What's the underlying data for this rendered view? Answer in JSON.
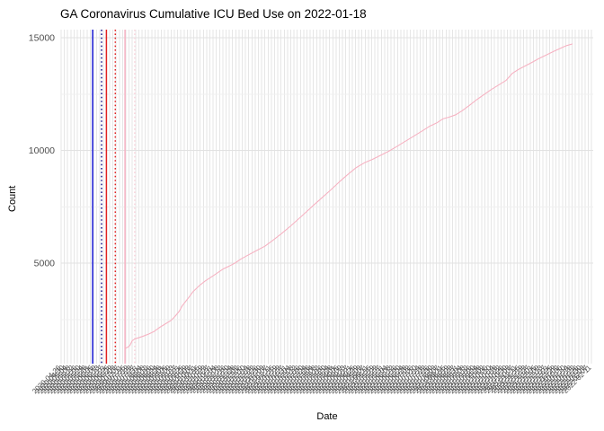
{
  "chart_data": {
    "type": "line",
    "title": "GA Coronavirus Cumulative ICU Bed Use on 2022-01-18",
    "xlabel": "Date",
    "ylabel": "Count",
    "legend": "none",
    "grid": true,
    "y_axis": {
      "ticks": [
        5000,
        10000,
        15000
      ],
      "tick_labels": [
        "5000",
        "10000",
        "15000"
      ],
      "minor_ticks": [
        2500,
        7500,
        12500
      ],
      "range": [
        538,
        15358
      ]
    },
    "x_axis": {
      "unit": "date",
      "tick_start": "2020-04-26",
      "tick_step_days": 4,
      "tick_count": 165,
      "range_days": [
        0,
        658
      ],
      "label_rotation_deg": 45,
      "last_data_date": "2022-01-18"
    },
    "series": [
      {
        "name": "cumulative-icu-bed-use",
        "color": "#f6b2c2",
        "x_unit": "days-since-axis-start",
        "points": [
          [
            79,
            1210
          ],
          [
            82,
            1260
          ],
          [
            85,
            1345
          ],
          [
            88,
            1560
          ],
          [
            92,
            1645
          ],
          [
            97,
            1700
          ],
          [
            102,
            1765
          ],
          [
            108,
            1850
          ],
          [
            115,
            1970
          ],
          [
            122,
            2150
          ],
          [
            129,
            2305
          ],
          [
            136,
            2460
          ],
          [
            141,
            2645
          ],
          [
            146,
            2865
          ],
          [
            150,
            3120
          ],
          [
            156,
            3390
          ],
          [
            163,
            3730
          ],
          [
            171,
            4000
          ],
          [
            178,
            4200
          ],
          [
            189,
            4460
          ],
          [
            200,
            4730
          ],
          [
            208,
            4870
          ],
          [
            215,
            5000
          ],
          [
            222,
            5170
          ],
          [
            230,
            5330
          ],
          [
            241,
            5540
          ],
          [
            252,
            5750
          ],
          [
            262,
            6010
          ],
          [
            272,
            6290
          ],
          [
            282,
            6590
          ],
          [
            292,
            6910
          ],
          [
            302,
            7230
          ],
          [
            312,
            7560
          ],
          [
            322,
            7880
          ],
          [
            333,
            8230
          ],
          [
            344,
            8600
          ],
          [
            355,
            8950
          ],
          [
            365,
            9240
          ],
          [
            375,
            9450
          ],
          [
            385,
            9600
          ],
          [
            395,
            9780
          ],
          [
            405,
            9960
          ],
          [
            415,
            10170
          ],
          [
            425,
            10390
          ],
          [
            435,
            10610
          ],
          [
            445,
            10830
          ],
          [
            455,
            11060
          ],
          [
            465,
            11230
          ],
          [
            472,
            11400
          ],
          [
            480,
            11480
          ],
          [
            488,
            11580
          ],
          [
            496,
            11760
          ],
          [
            505,
            12000
          ],
          [
            514,
            12250
          ],
          [
            523,
            12480
          ],
          [
            532,
            12700
          ],
          [
            541,
            12900
          ],
          [
            550,
            13100
          ],
          [
            558,
            13420
          ],
          [
            566,
            13600
          ],
          [
            574,
            13750
          ],
          [
            582,
            13900
          ],
          [
            591,
            14080
          ],
          [
            600,
            14230
          ],
          [
            609,
            14390
          ],
          [
            617,
            14520
          ],
          [
            625,
            14650
          ],
          [
            632,
            14720
          ]
        ]
      }
    ],
    "reference_lines": [
      {
        "day": 39,
        "color": "#1a1ad6",
        "style": "solid"
      },
      {
        "day": 50,
        "color": "#16168c",
        "style": "dotted"
      },
      {
        "day": 56,
        "color": "#e02020",
        "style": "solid"
      },
      {
        "day": 67,
        "color": "#e02020",
        "style": "dotted"
      },
      {
        "day": 79,
        "color": "#f6b2c2",
        "style": "solid"
      },
      {
        "day": 91,
        "color": "#fad3dc",
        "style": "dotted"
      }
    ],
    "colors": {
      "background": "#ffffff",
      "grid_vertical": "#e6e6e6",
      "grid_major": "#e2e2e2",
      "grid_minor": "#f0f0f0",
      "axis_text": "#4d4d4d",
      "title_text": "#000000",
      "line": "#f6b2c2"
    }
  }
}
